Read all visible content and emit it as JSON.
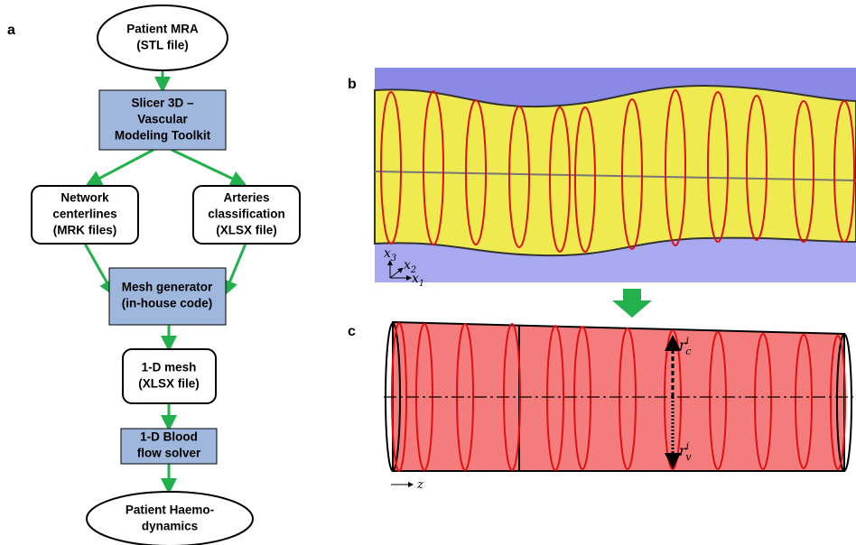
{
  "panels": {
    "a": "a",
    "b": "b",
    "c": "c"
  },
  "flowchart": {
    "nodes": [
      {
        "lines": [
          "Patient MRA",
          "(STL file)"
        ]
      },
      {
        "lines": [
          "Slicer 3D –",
          "Vascular",
          "Modeling Toolkit"
        ]
      },
      {
        "lines": [
          "Network",
          "centerlines",
          "(MRK files)"
        ]
      },
      {
        "lines": [
          "Arteries",
          "classification",
          "(XLSX file)"
        ]
      },
      {
        "lines": [
          "Mesh generator",
          "(in-house code)"
        ]
      },
      {
        "lines": [
          "1-D mesh",
          "(XLSX file)"
        ]
      },
      {
        "lines": [
          "1-D Blood",
          "flow solver"
        ]
      },
      {
        "lines": [
          "Patient Haemo-",
          "dynamics"
        ]
      }
    ]
  },
  "vessel_axes": [
    {
      "symbol": "x",
      "subscript": "3"
    },
    {
      "symbol": "x",
      "subscript": "2"
    },
    {
      "symbol": "x",
      "subscript": "1"
    }
  ],
  "model_labels": {
    "rc": {
      "symbol": "r",
      "subscript": "c",
      "superscript": "i"
    },
    "rv": {
      "symbol": "r",
      "subscript": "v",
      "superscript": "i"
    },
    "z": "z"
  }
}
